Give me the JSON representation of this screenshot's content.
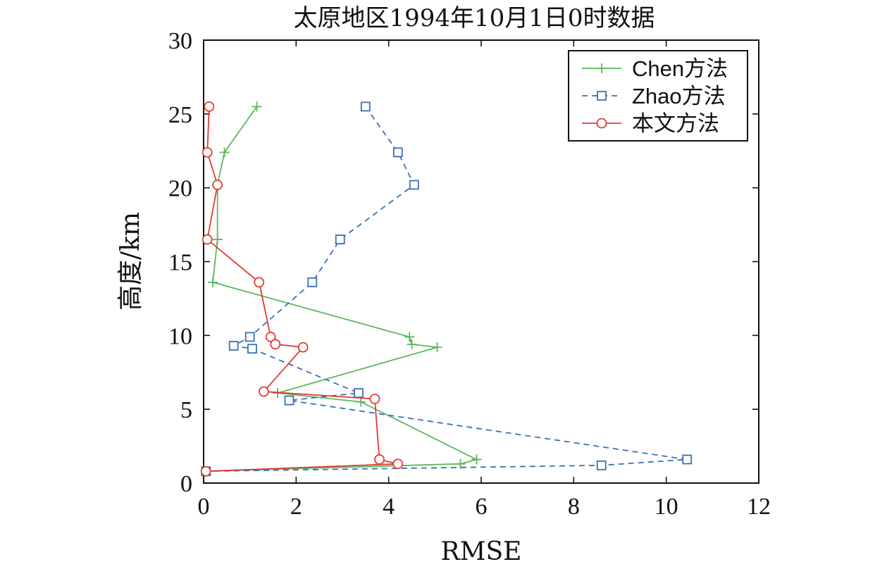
{
  "chart_data": {
    "type": "line",
    "title": "太原地区1994年10月1日0时数据",
    "xlabel": "RMSE",
    "ylabel": "高度/km",
    "xlim": [
      0,
      12
    ],
    "ylim": [
      0,
      30
    ],
    "xticks": [
      0,
      2,
      4,
      6,
      8,
      10,
      12
    ],
    "yticks": [
      0,
      5,
      10,
      15,
      20,
      25,
      30
    ],
    "grid": false,
    "legend_position": "top-right",
    "series": [
      {
        "name": "Chen方法",
        "color": "#5cb85c",
        "marker": "plus",
        "linestyle": "solid",
        "points": [
          {
            "x": 1.15,
            "y": 25.5
          },
          {
            "x": 0.45,
            "y": 22.4
          },
          {
            "x": 0.3,
            "y": 20.2
          },
          {
            "x": 0.3,
            "y": 16.5
          },
          {
            "x": 0.2,
            "y": 13.6
          },
          {
            "x": 4.45,
            "y": 9.9
          },
          {
            "x": 4.5,
            "y": 9.4
          },
          {
            "x": 5.05,
            "y": 9.2
          },
          {
            "x": 1.6,
            "y": 6.1
          },
          {
            "x": 3.4,
            "y": 5.5
          },
          {
            "x": 5.9,
            "y": 1.6
          },
          {
            "x": 5.55,
            "y": 1.3
          },
          {
            "x": 0.05,
            "y": 0.8
          }
        ]
      },
      {
        "name": "Zhao方法",
        "color": "#3b6fb6",
        "marker": "square",
        "linestyle": "dashed",
        "points": [
          {
            "x": 3.5,
            "y": 25.5
          },
          {
            "x": 4.2,
            "y": 22.4
          },
          {
            "x": 4.55,
            "y": 20.2
          },
          {
            "x": 2.95,
            "y": 16.5
          },
          {
            "x": 2.35,
            "y": 13.6
          },
          {
            "x": 1.0,
            "y": 9.9
          },
          {
            "x": 0.65,
            "y": 9.3
          },
          {
            "x": 1.05,
            "y": 9.1
          },
          {
            "x": 3.35,
            "y": 6.1
          },
          {
            "x": 1.85,
            "y": 5.6
          },
          {
            "x": 10.45,
            "y": 1.6
          },
          {
            "x": 8.6,
            "y": 1.2
          },
          {
            "x": 0.05,
            "y": 0.8
          }
        ]
      },
      {
        "name": "本文方法",
        "color": "#e03c31",
        "marker": "circle",
        "linestyle": "solid",
        "points": [
          {
            "x": 0.12,
            "y": 25.5
          },
          {
            "x": 0.08,
            "y": 22.4
          },
          {
            "x": 0.3,
            "y": 20.2
          },
          {
            "x": 0.08,
            "y": 16.5
          },
          {
            "x": 1.2,
            "y": 13.6
          },
          {
            "x": 1.45,
            "y": 9.9
          },
          {
            "x": 1.55,
            "y": 9.4
          },
          {
            "x": 2.15,
            "y": 9.2
          },
          {
            "x": 1.3,
            "y": 6.2
          },
          {
            "x": 3.7,
            "y": 5.7
          },
          {
            "x": 3.8,
            "y": 1.6
          },
          {
            "x": 4.2,
            "y": 1.3
          },
          {
            "x": 0.05,
            "y": 0.8
          }
        ]
      }
    ]
  }
}
